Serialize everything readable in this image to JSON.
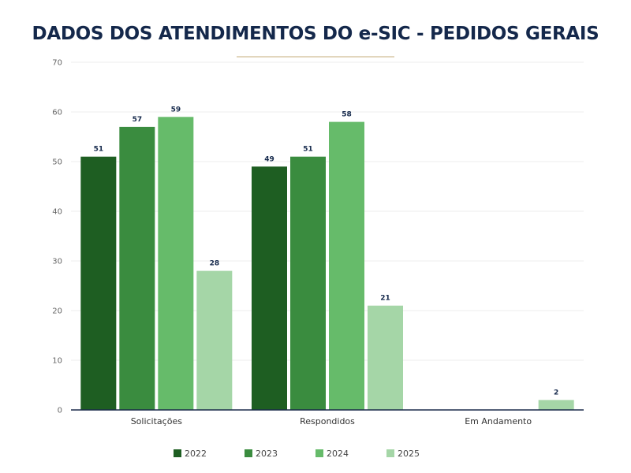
{
  "title": "DADOS DOS ATENDIMENTOS DO e-SIC - PEDIDOS GERAIS",
  "chart_data": {
    "type": "bar",
    "title": "DADOS DOS ATENDIMENTOS DO e-SIC - PEDIDOS GERAIS",
    "xlabel": "",
    "ylabel": "",
    "ylim": [
      0,
      70
    ],
    "yticks": [
      "0",
      "10",
      "20",
      "30",
      "40",
      "50",
      "60",
      "70"
    ],
    "grid": true,
    "legend": "bottom",
    "categories": [
      "Solicitações",
      "Respondidos",
      "Em Andamento"
    ],
    "series": [
      {
        "name": "2022",
        "color": "#1e5e22",
        "values": [
          51,
          49,
          0
        ]
      },
      {
        "name": "2023",
        "color": "#3a8c3f",
        "values": [
          57,
          51,
          0
        ]
      },
      {
        "name": "2024",
        "color": "#66bb6a",
        "values": [
          59,
          58,
          0
        ]
      },
      {
        "name": "2025",
        "color": "#a5d6a7",
        "values": [
          28,
          21,
          2
        ]
      }
    ],
    "data_labels": [
      [
        "51",
        "49",
        ""
      ],
      [
        "57",
        "51",
        ""
      ],
      [
        "59",
        "58",
        ""
      ],
      [
        "28",
        "21",
        "2"
      ]
    ]
  }
}
